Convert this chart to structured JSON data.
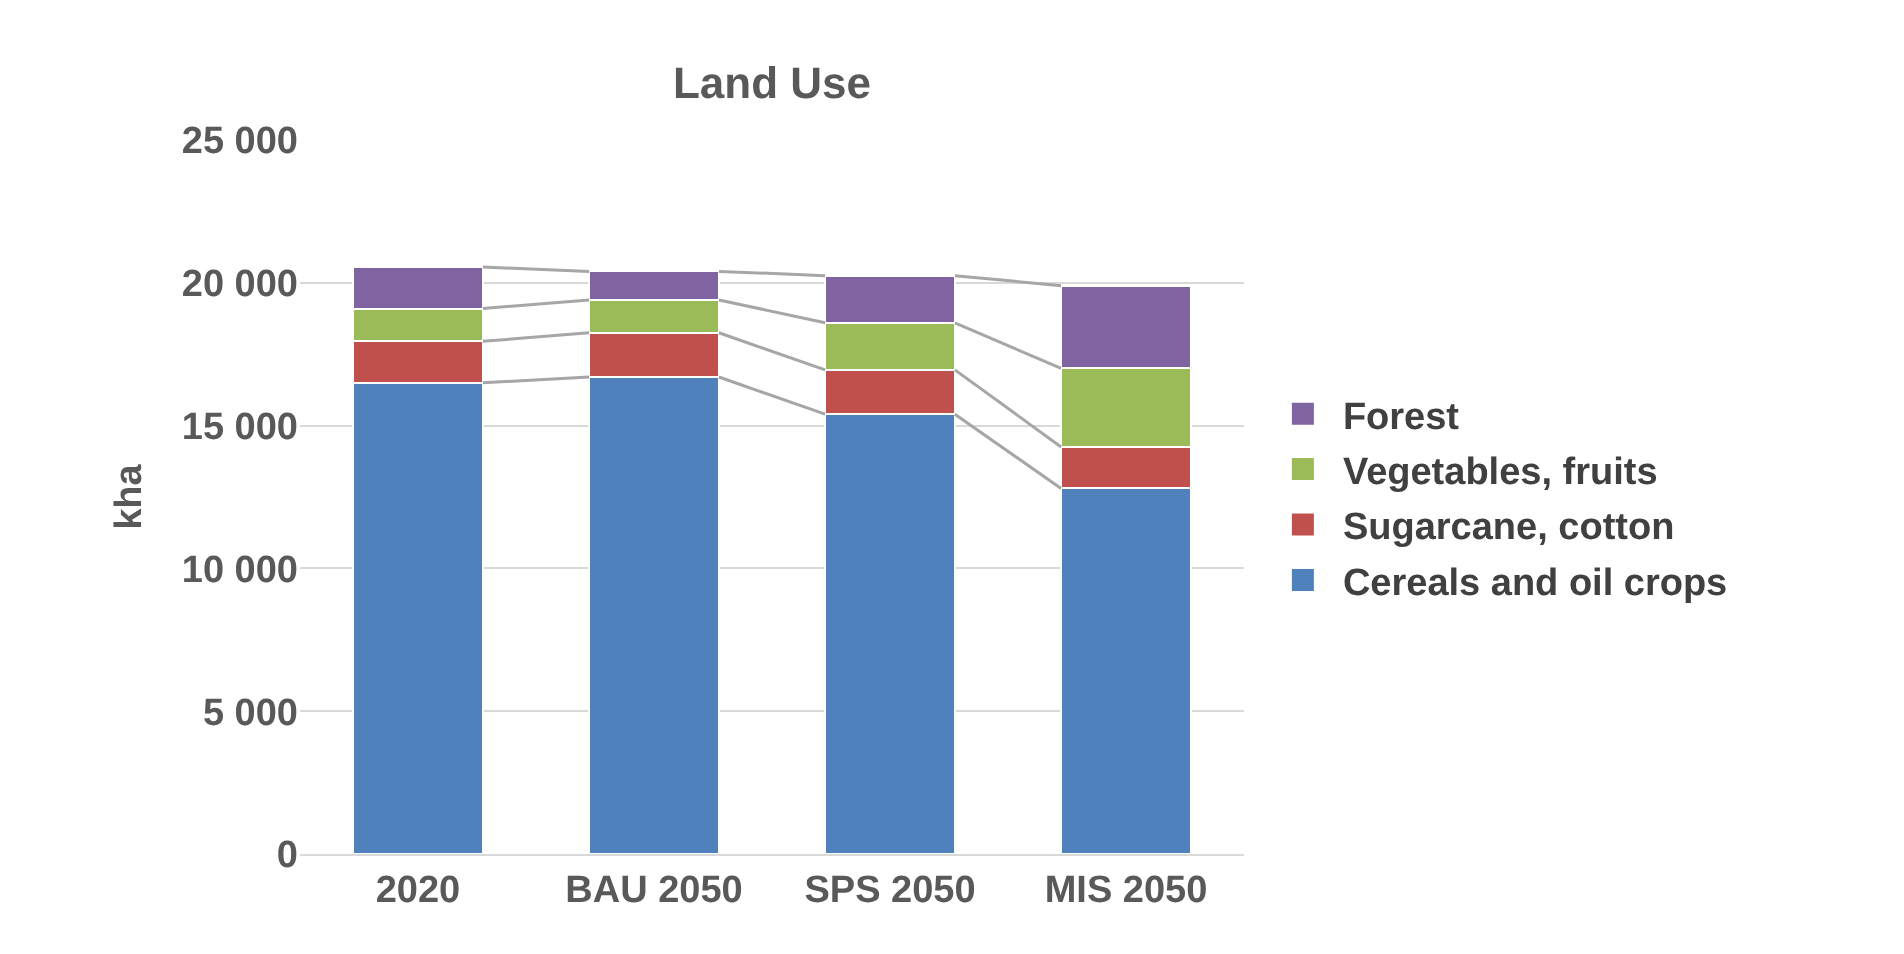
{
  "chart_data": {
    "type": "bar",
    "title": "Land Use",
    "ylabel": "kha",
    "stacked": true,
    "categories": [
      "2020",
      "BAU 2050",
      "SPS 2050",
      "MIS 2050"
    ],
    "series": [
      {
        "name": "Cereals and oil crops",
        "color": "#4f81bd",
        "values": [
          16500,
          16700,
          15400,
          12800
        ]
      },
      {
        "name": "Sugarcane, cotton",
        "color": "#c0504d",
        "values": [
          1450,
          1550,
          1550,
          1450
        ]
      },
      {
        "name": "Vegetables, fruits",
        "color": "#9bbb59",
        "values": [
          1150,
          1150,
          1650,
          2750
        ]
      },
      {
        "name": "Forest",
        "color": "#8064a2",
        "values": [
          1450,
          1000,
          1650,
          2900
        ]
      }
    ],
    "ylim": [
      0,
      25000
    ],
    "yticks": [
      {
        "value": 0,
        "label": "0"
      },
      {
        "value": 5000,
        "label": "5 000"
      },
      {
        "value": 10000,
        "label": "10 000"
      },
      {
        "value": 15000,
        "label": "15 000"
      },
      {
        "value": 20000,
        "label": "20 000"
      },
      {
        "value": 25000,
        "label": "25 000"
      }
    ],
    "grid": "y",
    "legend": "right"
  }
}
